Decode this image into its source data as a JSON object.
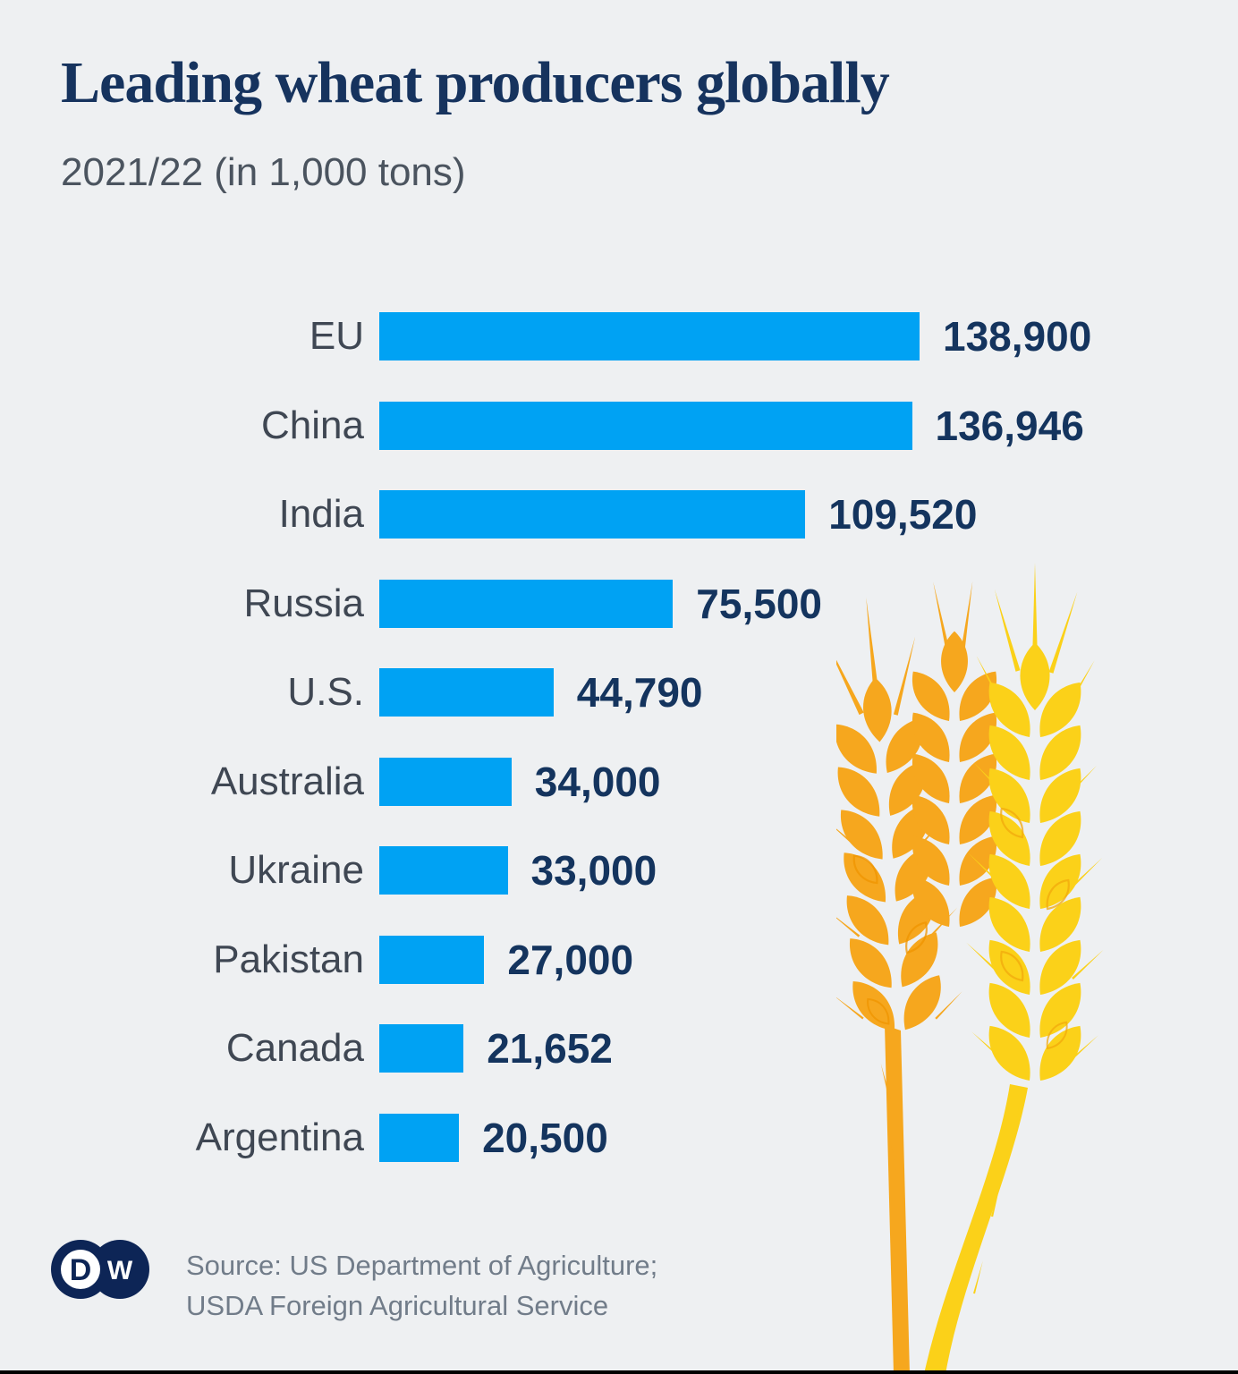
{
  "colors": {
    "background": "#eef0f2",
    "bar": "#00a2f3",
    "title_navy": "#16335e",
    "value_navy": "#14345e",
    "label_gray": "#3f4753",
    "subtitle_gray": "#4b545f",
    "source_gray": "#717c89",
    "wheat_front": "#fbd119",
    "wheat_back": "#f6a71e",
    "wheat_vein_front": "#f2a80c",
    "wheat_vein_back": "#ef9400",
    "logo_navy": "#0d2556",
    "logo_white": "#ffffff",
    "bottom_line": "#000000"
  },
  "chart_data": {
    "type": "bar",
    "orientation": "horizontal",
    "title": "Leading wheat producers globally",
    "subtitle": "2021/22 (in 1,000 tons)",
    "season": "2021/22",
    "unit": "1,000 tons",
    "categories": [
      "EU",
      "China",
      "India",
      "Russia",
      "U.S.",
      "Australia",
      "Ukraine",
      "Pakistan",
      "Canada",
      "Argentina"
    ],
    "values": [
      138900,
      136946,
      109520,
      75500,
      44790,
      34000,
      33000,
      27000,
      21652,
      20500
    ],
    "value_labels": [
      "138,900",
      "136,946",
      "109,520",
      "75,500",
      "44,790",
      "34,000",
      "33,000",
      "27,000",
      "21,652",
      "20,500"
    ],
    "xlim": [
      0,
      138900
    ],
    "grid": false,
    "legend": "none",
    "bar_color": "#00a2f3"
  },
  "footer": {
    "logo_d": "D",
    "logo_w": "W",
    "source_line1": "Source: US Department of Agriculture;",
    "source_line2": "USDA Foreign Agricultural Service"
  }
}
